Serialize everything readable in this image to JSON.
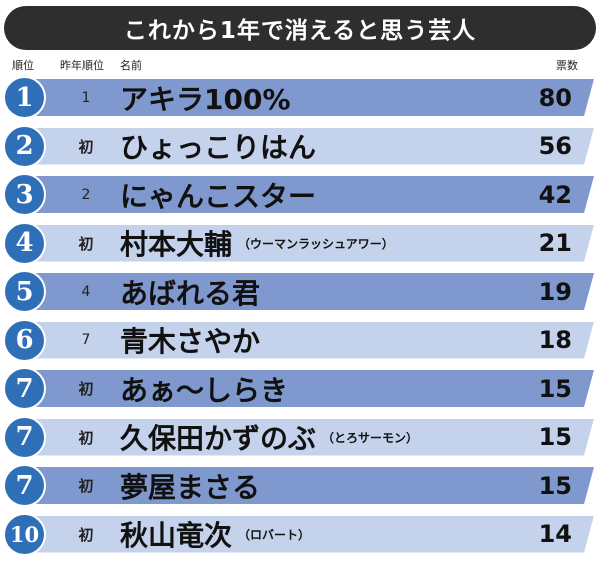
{
  "title": "これから1年で消えると思う芸人",
  "headers": {
    "rank": "順位",
    "prev_rank": "昨年順位",
    "name": "名前",
    "votes": "票数"
  },
  "chart_data": {
    "type": "table",
    "title": "これから1年で消えると思う芸人",
    "columns": [
      "順位",
      "昨年順位",
      "名前",
      "票数"
    ],
    "rows": [
      {
        "rank": "1",
        "prev": "1",
        "name": "アキラ100%",
        "note": "",
        "votes": 80
      },
      {
        "rank": "2",
        "prev": "初",
        "name": "ひょっこりはん",
        "note": "",
        "votes": 56
      },
      {
        "rank": "3",
        "prev": "2",
        "name": "にゃんこスター",
        "note": "",
        "votes": 42
      },
      {
        "rank": "4",
        "prev": "初",
        "name": "村本大輔",
        "note": "（ウーマンラッシュアワー）",
        "votes": 21
      },
      {
        "rank": "5",
        "prev": "4",
        "name": "あばれる君",
        "note": "",
        "votes": 19
      },
      {
        "rank": "6",
        "prev": "7",
        "name": "青木さやか",
        "note": "",
        "votes": 18
      },
      {
        "rank": "7",
        "prev": "初",
        "name": "あぁ～しらき",
        "note": "",
        "votes": 15
      },
      {
        "rank": "7",
        "prev": "初",
        "name": "久保田かずのぶ",
        "note": "（とろサーモン）",
        "votes": 15
      },
      {
        "rank": "7",
        "prev": "初",
        "name": "夢屋まさる",
        "note": "",
        "votes": 15
      },
      {
        "rank": "10",
        "prev": "初",
        "name": "秋山竜次",
        "note": "（ロバート）",
        "votes": 14
      }
    ]
  },
  "colors": {
    "title_bg": "#2e2e2e",
    "circle": "#2e6fb8",
    "band_dark": "#7f99cf",
    "band_light": "#c4d2ec"
  }
}
